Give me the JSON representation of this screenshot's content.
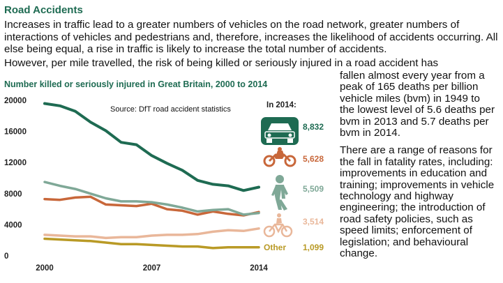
{
  "heading": "Road Accidents",
  "intro": "Increases in traffic lead to a greater numbers of vehicles on the road network, greater numbers of interactions of vehicles and pedestrians and, therefore, increases the likelihood of accidents occurring. All else being equal, a rise in traffic is likely to increase the total number of accidents.",
  "para2": "However, per mile travelled, the risk of being killed or seriously injured in a road accident has",
  "right_p1": "fallen almost every year from a peak of 165 deaths per billion vehicle miles (bvm) in 1949 to the lowest level of 5.6 deaths per bvm in 2013 and 5.7 deaths per bvm in 2014.",
  "right_p2": "There are a range of reasons for the fall in fatality rates, including: improvements in education and training; improvements in vehicle technology and highway engineering; the introduction of road safety policies, such as speed limits; enforcement of legislation; and behavioural change.",
  "colors": {
    "car": "#1e6b52",
    "motorcycle": "#c8673a",
    "pedestrian": "#7fa897",
    "cyclist": "#e9b79a",
    "other": "#b99a26"
  },
  "chart_data": {
    "type": "line",
    "title": "Number killed or seriously injured in Great Britain, 2000 to 2014",
    "source": "Source: DfT road accident statistics",
    "annotation": "In 2014:",
    "x": [
      2000,
      2001,
      2002,
      2003,
      2004,
      2005,
      2006,
      2007,
      2008,
      2009,
      2010,
      2011,
      2012,
      2013,
      2014
    ],
    "xticks": [
      "2000",
      "2007",
      "2014"
    ],
    "yticks": [
      "0",
      "4000",
      "8000",
      "12000",
      "16000",
      "20000"
    ],
    "ylim": [
      0,
      20000
    ],
    "series": [
      {
        "name": "Car",
        "color_key": "car",
        "value_2014": "8,832",
        "icon": "car-icon",
        "values": [
          19600,
          19300,
          18600,
          17200,
          16100,
          14600,
          14300,
          12900,
          11900,
          11000,
          9700,
          9200,
          9000,
          8400,
          8832
        ]
      },
      {
        "name": "Pedestrian",
        "color_key": "pedestrian",
        "value_2014": "5,509",
        "icon": "pedestrian-icon",
        "values": [
          9500,
          9000,
          8600,
          8000,
          7400,
          7000,
          7000,
          6900,
          6600,
          6200,
          5700,
          5900,
          6000,
          5300,
          5509
        ]
      },
      {
        "name": "Motorcycle",
        "color_key": "motorcycle",
        "value_2014": "5,628",
        "icon": "motorcycle-icon",
        "values": [
          7300,
          7200,
          7500,
          7600,
          6600,
          6500,
          6400,
          6700,
          6000,
          5800,
          5300,
          5700,
          5400,
          5200,
          5628
        ]
      },
      {
        "name": "Cyclist",
        "color_key": "cyclist",
        "value_2014": "3,514",
        "icon": "cyclist-icon",
        "values": [
          2700,
          2600,
          2500,
          2500,
          2300,
          2400,
          2400,
          2600,
          2700,
          2700,
          2800,
          3100,
          3300,
          3200,
          3514
        ]
      },
      {
        "name": "Other",
        "color_key": "other",
        "value_2014": "1,099",
        "icon": "",
        "values": [
          2200,
          2100,
          2000,
          1900,
          1700,
          1500,
          1500,
          1400,
          1300,
          1200,
          1200,
          1000,
          1100,
          1100,
          1099
        ]
      }
    ]
  }
}
